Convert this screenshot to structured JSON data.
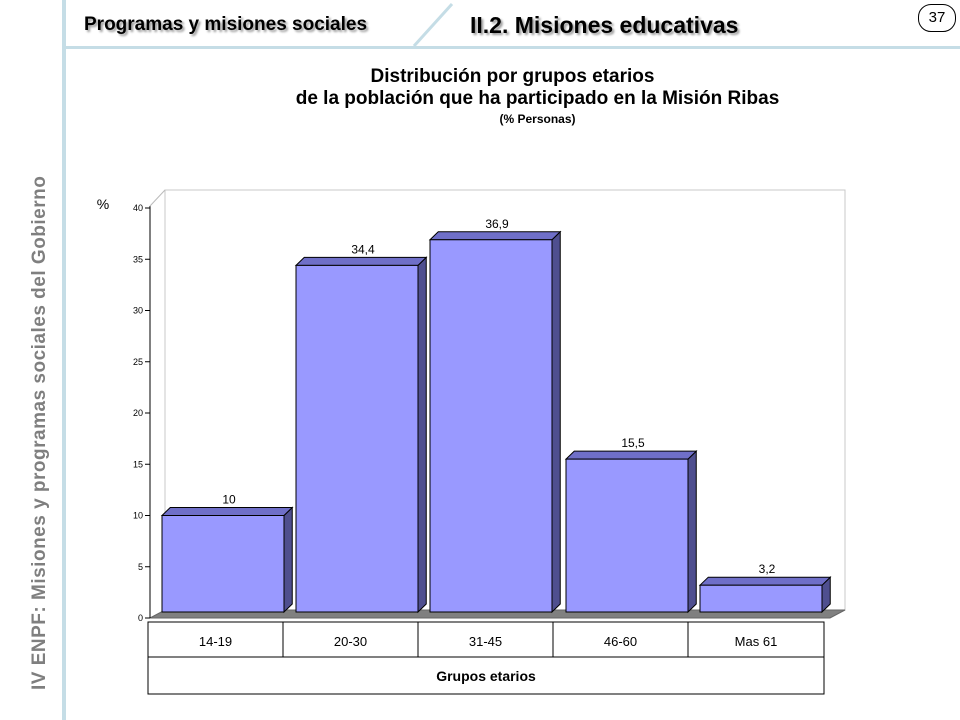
{
  "header": {
    "section": "Programas y misiones sociales",
    "subsection": "II.2. Misiones educativas",
    "page_number": "37"
  },
  "sidebar_text": "IV ENPF:  Misiones y programas sociales del Gobierno",
  "chart_data": {
    "type": "bar",
    "title": "Distribución por grupos etarios",
    "subtitle": "de la población que ha participado en la Misión Ribas",
    "unit_note": "(% Personas)",
    "ylabel": "%",
    "xlabel": "Grupos etarios",
    "categories": [
      "14-19",
      "20-30",
      "31-45",
      "46-60",
      "Mas 61"
    ],
    "values": [
      10,
      34.4,
      36.9,
      15.5,
      3.2
    ],
    "data_labels": [
      "10",
      "34,4",
      "36,9",
      "15,5",
      "3,2"
    ],
    "yticks": [
      "0",
      "5",
      "10",
      "15",
      "20",
      "25",
      "30",
      "35",
      "40"
    ],
    "ylim": [
      0,
      40
    ],
    "grid": false,
    "colors": {
      "bar_front": "#9999ff",
      "bar_side": "#4f4f8f",
      "bar_top": "#6f6fc8",
      "floor": "#808080"
    }
  }
}
